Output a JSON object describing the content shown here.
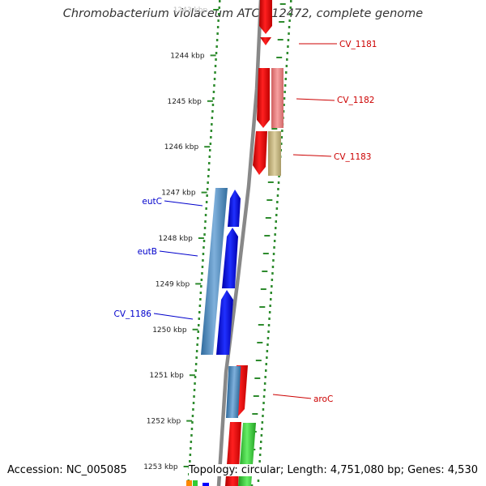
{
  "title": "Chromobacterium violaceum ATCC 12472, complete genome",
  "footer": {
    "accession": "Accession: NC_005085",
    "summary": "Topology: circular; Length: 4,751,080 bp; Genes: 4,530"
  },
  "ticks": [
    "1243 kbp",
    "1244 kbp",
    "1245 kbp",
    "1246 kbp",
    "1247 kbp",
    "1248 kbp",
    "1249 kbp",
    "1250 kbp",
    "1251 kbp",
    "1252 kbp",
    "1253 kbp"
  ],
  "gene_labels": [
    "CV_1181",
    "CV_1182",
    "CV_1183",
    "eutC",
    "eutB",
    "CV_1186",
    "aroC"
  ],
  "colors": {
    "label_outer": "#cc0000",
    "label_inner": "#0000cc",
    "track_gray": "#888888",
    "dotted_ring": "#2e8b2e",
    "cds_red": "#ff0000",
    "pink": "#f08080",
    "olive": "#c8b878",
    "blue": "#0000ff",
    "steel": "#4682b4",
    "green": "#33cc33"
  }
}
